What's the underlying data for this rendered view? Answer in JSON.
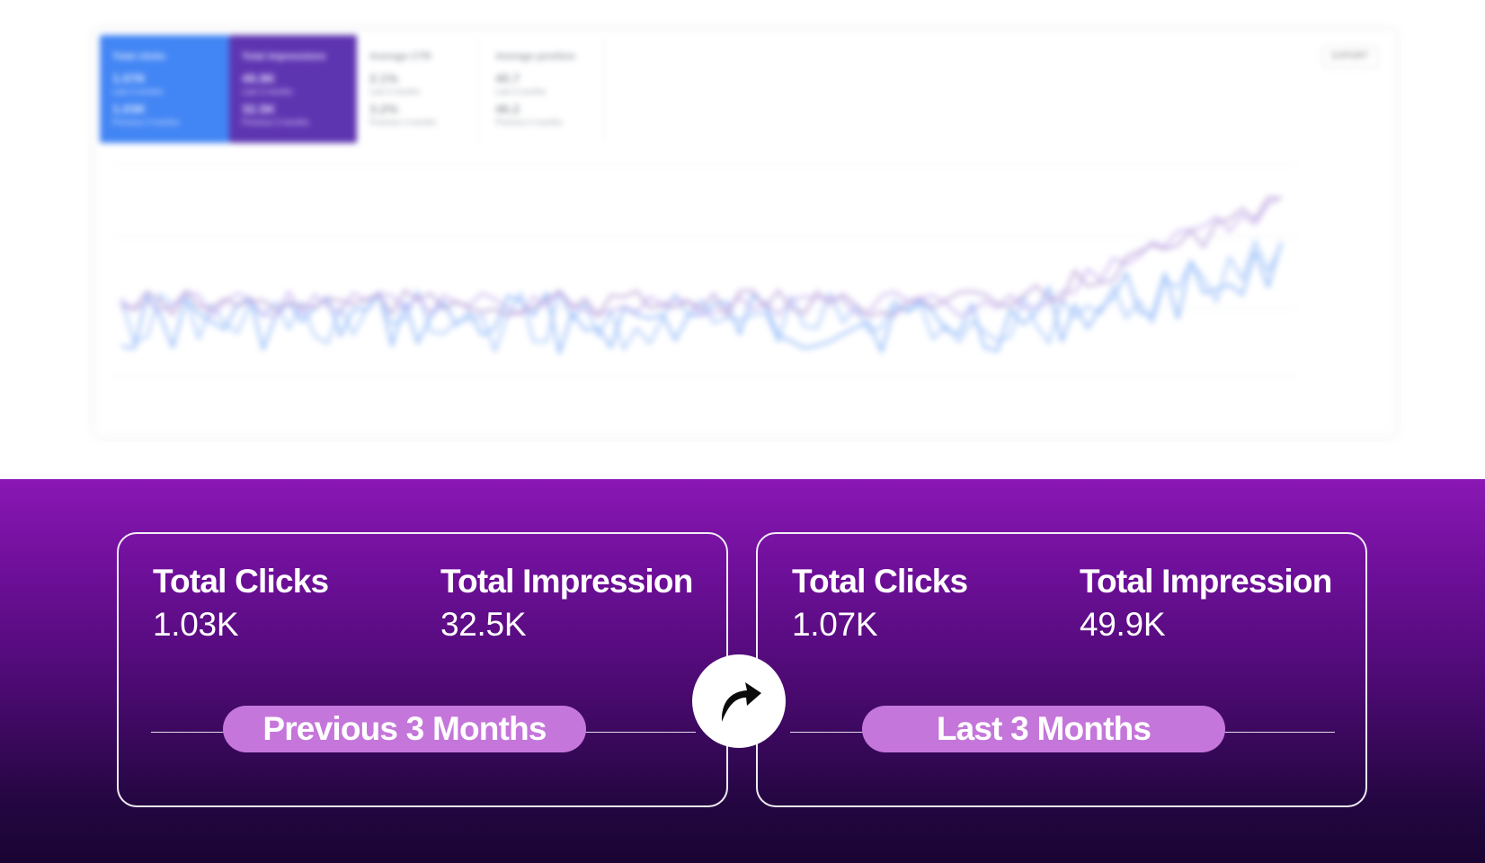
{
  "dashboard": {
    "cards": [
      {
        "title": "Total clicks",
        "value1": "1.07K",
        "sub1": "Last 3 months",
        "value2": "1.03K",
        "sub2": "Previous 3 months"
      },
      {
        "title": "Total impressions",
        "value1": "49.9K",
        "sub1": "Last 3 months",
        "value2": "32.5K",
        "sub2": "Previous 3 months"
      },
      {
        "title": "Average CTR",
        "value1": "2.1%",
        "sub1": "Last 3 months",
        "value2": "3.2%",
        "sub2": "Previous 3 months"
      },
      {
        "title": "Average position",
        "value1": "40.7",
        "sub1": "Last 3 months",
        "value2": "46.2",
        "sub2": "Previous 3 months"
      }
    ],
    "export_label": "EXPORT",
    "series_colors": [
      "#8ab4f8",
      "#a8c7fa",
      "#c9b4f0",
      "#b9a3d8"
    ]
  },
  "comparison": {
    "previous": {
      "clicks_label": "Total Clicks",
      "clicks_value": "1.03K",
      "impressions_label": "Total Impression",
      "impressions_value": "32.5K",
      "period_label": "Previous 3 Months"
    },
    "last": {
      "clicks_label": "Total Clicks",
      "clicks_value": "1.07K",
      "impressions_label": "Total Impression",
      "impressions_value": "49.9K",
      "period_label": "Last 3 Months"
    },
    "arrow_icon": "curved-arrow-right-icon"
  },
  "colors": {
    "pill": "#c576da",
    "panel_top": "#8a17b4",
    "panel_bottom": "#1a0433"
  }
}
